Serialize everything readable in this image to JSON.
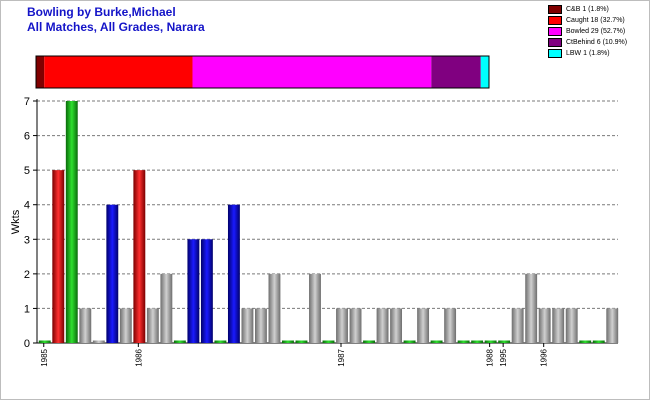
{
  "header": {
    "title_line1": "Bowling by Burke,Michael",
    "title_line2": "All Matches, All Grades, Narara"
  },
  "legend": [
    {
      "label": "C&B 1 (1.8%)",
      "color": "#800000",
      "count": 1
    },
    {
      "label": "Caught 18 (32.7%)",
      "color": "#ff0000",
      "count": 18
    },
    {
      "label": "Bowled 29 (52.7%)",
      "color": "#ff00ff",
      "count": 29
    },
    {
      "label": "CtBehind 6 (10.9%)",
      "color": "#800080",
      "count": 6
    },
    {
      "label": "LBW 1 (1.8%)",
      "color": "#00ffff",
      "count": 1
    }
  ],
  "chart_data": {
    "type": "bar",
    "ylabel": "Wkts",
    "ylim": [
      0,
      7
    ],
    "yticks": [
      0,
      1,
      2,
      3,
      4,
      5,
      6,
      7
    ],
    "grid": true,
    "values": [
      0,
      5,
      7,
      1,
      0,
      4,
      1,
      5,
      1,
      2,
      0,
      3,
      3,
      0,
      4,
      1,
      1,
      2,
      0,
      0,
      2,
      0,
      1,
      1,
      0,
      1,
      1,
      0,
      1,
      0,
      1,
      0,
      0,
      0,
      0,
      1,
      2,
      1,
      1,
      1,
      0,
      0,
      1
    ],
    "bar_colors": [
      "green",
      "red",
      "green",
      "gray",
      "gray",
      "blue",
      "gray",
      "red",
      "gray",
      "gray",
      "green",
      "blue",
      "blue",
      "green",
      "blue",
      "gray",
      "gray",
      "gray",
      "green",
      "green",
      "gray",
      "green",
      "gray",
      "gray",
      "green",
      "gray",
      "gray",
      "green",
      "gray",
      "green",
      "gray",
      "green",
      "green",
      "green",
      "green",
      "gray",
      "gray",
      "gray",
      "gray",
      "gray",
      "green",
      "green",
      "gray"
    ],
    "year_labels": [
      {
        "bar": 0,
        "label": "1985"
      },
      {
        "bar": 7,
        "label": "1986"
      },
      {
        "bar": 22,
        "label": "1987"
      },
      {
        "bar": 33,
        "label": "1988"
      },
      {
        "bar": 34,
        "label": "1995"
      },
      {
        "bar": 37,
        "label": "1996"
      }
    ],
    "dismissal_bar": [
      {
        "type": "C&B",
        "count": 1,
        "color": "#800000"
      },
      {
        "type": "Caught",
        "count": 18,
        "color": "#ff0000"
      },
      {
        "type": "Bowled",
        "count": 29,
        "color": "#ff00ff"
      },
      {
        "type": "CtBehind",
        "count": 6,
        "color": "#800080"
      },
      {
        "type": "LBW",
        "count": 1,
        "color": "#00ffff"
      }
    ]
  }
}
